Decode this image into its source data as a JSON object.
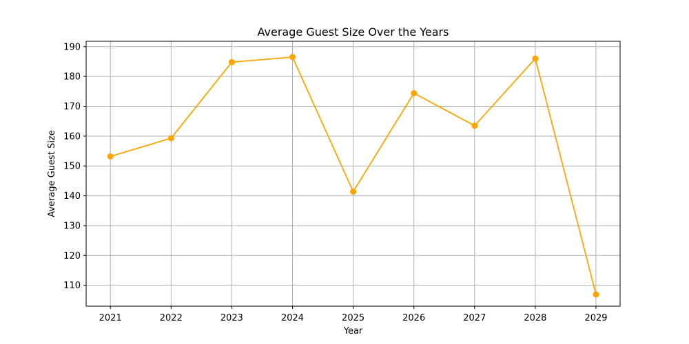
{
  "chart_data": {
    "type": "line",
    "title": "Average Guest Size Over the Years",
    "xlabel": "Year",
    "ylabel": "Average Guest Size",
    "x": [
      "2021",
      "2022",
      "2023",
      "2024",
      "2025",
      "2026",
      "2027",
      "2028",
      "2029"
    ],
    "series": [
      {
        "values": [
          153.2,
          159.3,
          184.8,
          186.5,
          141.4,
          174.4,
          163.5,
          186.0,
          106.9
        ]
      }
    ],
    "yticks": [
      "110",
      "120",
      "130",
      "140",
      "150",
      "160",
      "170",
      "180",
      "190"
    ],
    "ylim": [
      103,
      191.8
    ],
    "grid": true,
    "line_color": "#ffa500",
    "marker": "circle"
  }
}
